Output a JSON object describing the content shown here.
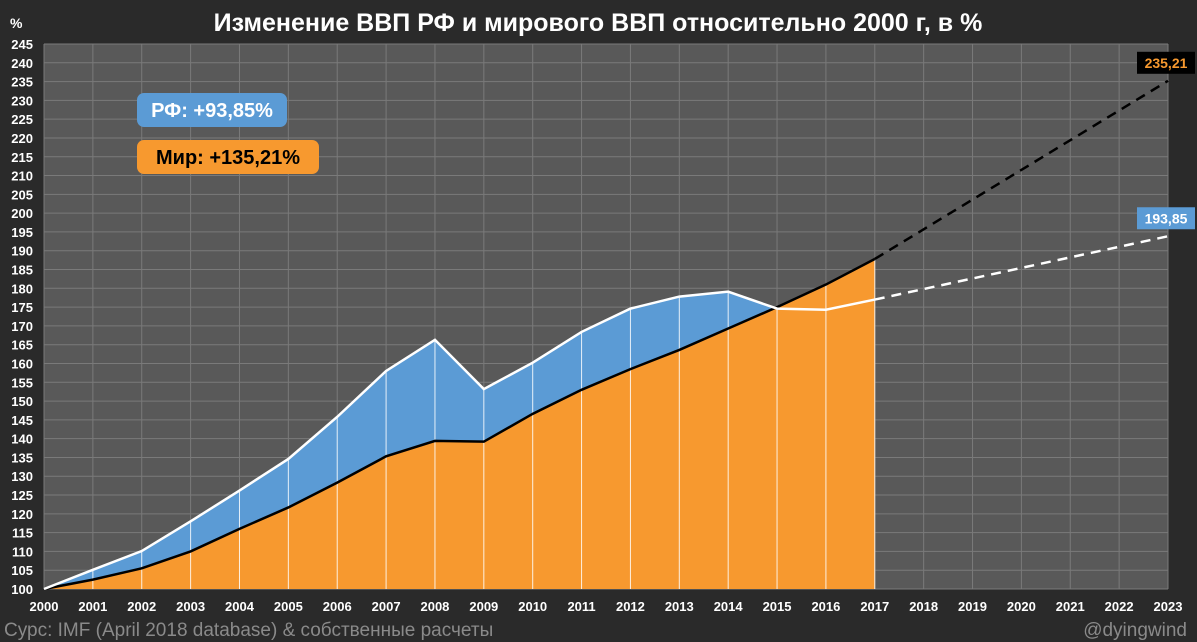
{
  "chart_data": {
    "type": "area",
    "title": "Изменение ВВП РФ и мирового ВВП относительно 2000 г, в %",
    "ylabel": "%",
    "ylim": [
      100,
      245
    ],
    "ytick_step": 5,
    "x": [
      2000,
      2001,
      2002,
      2003,
      2004,
      2005,
      2006,
      2007,
      2008,
      2009,
      2010,
      2011,
      2012,
      2013,
      2014,
      2015,
      2016,
      2017,
      2018,
      2019,
      2020,
      2021,
      2022,
      2023
    ],
    "series": [
      {
        "key": "russia",
        "color": "#5b9bd5",
        "line_color": "#ffffff",
        "x": [
          2000,
          2001,
          2002,
          2003,
          2004,
          2005,
          2006,
          2007,
          2008,
          2009,
          2010,
          2011,
          2012,
          2013,
          2014,
          2015,
          2016,
          2017
        ],
        "values": [
          100,
          105.1,
          110.1,
          118.0,
          126.2,
          134.6,
          145.8,
          158.0,
          166.3,
          153.2,
          160.2,
          168.4,
          174.6,
          177.8,
          179.1,
          174.6,
          174.3,
          177.0
        ],
        "projection_x": [
          2017,
          2023
        ],
        "projection_values": [
          177.0,
          193.85
        ]
      },
      {
        "key": "world",
        "color": "#f7992f",
        "line_color": "#000000",
        "x": [
          2000,
          2001,
          2002,
          2003,
          2004,
          2005,
          2006,
          2007,
          2008,
          2009,
          2010,
          2011,
          2012,
          2013,
          2014,
          2015,
          2016,
          2017
        ],
        "values": [
          100,
          102.5,
          105.5,
          110.0,
          116.0,
          121.7,
          128.3,
          135.3,
          139.4,
          139.2,
          146.6,
          153.0,
          158.5,
          163.6,
          169.3,
          175.0,
          181.0,
          187.8
        ],
        "projection_x": [
          2017,
          2023
        ],
        "projection_values": [
          187.8,
          235.21
        ]
      }
    ],
    "annotations": [
      {
        "key": "russia_box",
        "text": "РФ: +93,85%",
        "bg": "#5b9bd5",
        "color": "#ffffff"
      },
      {
        "key": "world_box",
        "text": "Мир: +135,21%",
        "bg": "#f7992f",
        "color": "#000000"
      }
    ],
    "end_labels": [
      {
        "key": "world_end",
        "text": "235,21",
        "bg": "#000000",
        "color": "#f7992f",
        "year": 2023,
        "value": 235.21
      },
      {
        "key": "russia_end",
        "text": "193,85",
        "bg": "#5b9bd5",
        "color": "#ffffff",
        "year": 2023,
        "value": 193.85
      }
    ],
    "grid": true
  },
  "footer": {
    "source": "Сурс: IMF (April 2018 database) & собственные расчеты",
    "author": "@dyingwind"
  },
  "colors": {
    "background": "#2a2a2a",
    "plot_background": "#595959",
    "grid": "#7a7a7a"
  }
}
